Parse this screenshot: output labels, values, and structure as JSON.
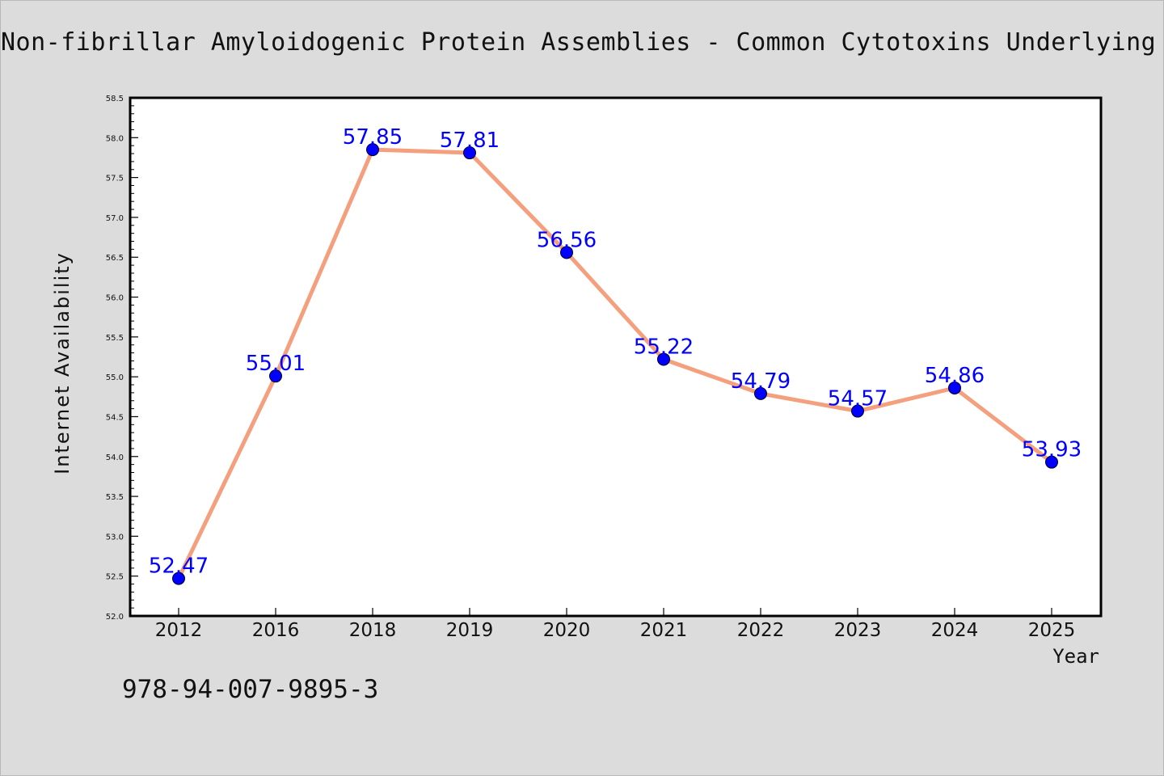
{
  "title": "Non-fibrillar Amyloidogenic Protein Assemblies - Common Cytotoxins Underlying De",
  "footer": "978-94-007-9895-3",
  "chart_data": {
    "type": "line",
    "title": "Non-fibrillar Amyloidogenic Protein Assemblies - Common Cytotoxins Underlying De",
    "xlabel": "Year",
    "ylabel": "Internet Availability",
    "categories": [
      "2012",
      "2016",
      "2018",
      "2019",
      "2020",
      "2021",
      "2022",
      "2023",
      "2024",
      "2025"
    ],
    "series": [
      {
        "values": [
          52.47,
          55.01,
          57.85,
          57.81,
          56.56,
          55.22,
          54.79,
          54.57,
          54.86,
          53.93
        ]
      }
    ],
    "data_labels": [
      "52.47",
      "55.01",
      "57.85",
      "57.81",
      "56.56",
      "55.22",
      "54.79",
      "54.57",
      "54.86",
      "53.93"
    ],
    "ylim": [
      52.0,
      58.5
    ],
    "yticks": [
      "52.0",
      "52.5",
      "53.0",
      "53.5",
      "54.0",
      "54.5",
      "55.0",
      "55.5",
      "56.0",
      "56.5",
      "57.0",
      "57.5",
      "58.0",
      "58.5"
    ],
    "grid": false,
    "legend": "none",
    "colors": {
      "line": "#f4a07e",
      "marker": "#0000ff",
      "data_label": "#0000ff",
      "plot_background": "#ffffff",
      "page_background": "#dcdcdc"
    }
  }
}
